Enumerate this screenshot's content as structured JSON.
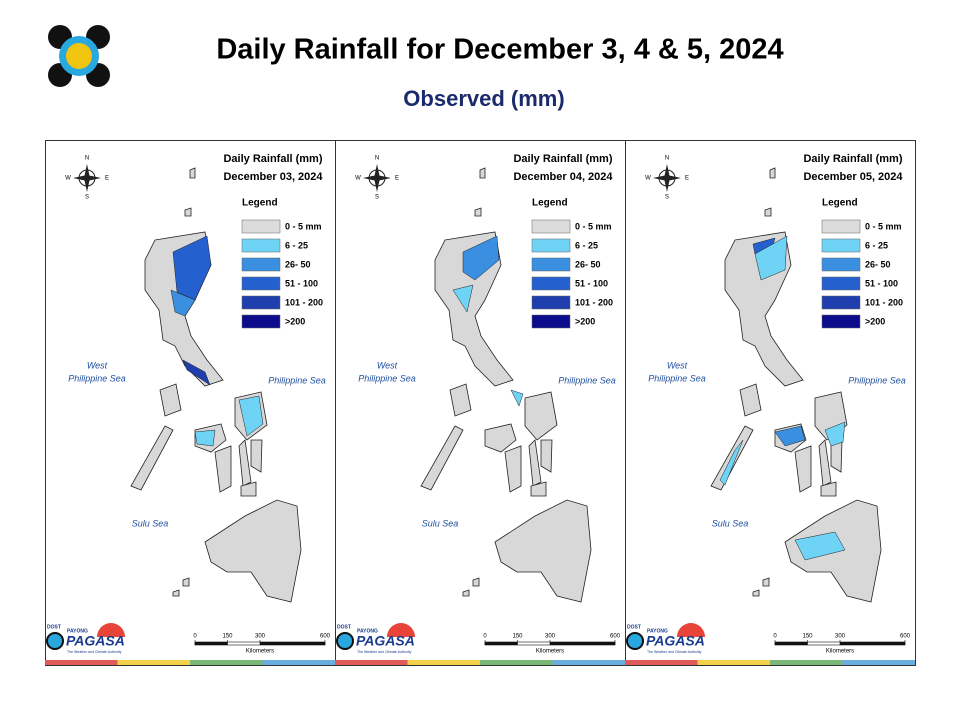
{
  "header": {
    "title": "Daily Rainfall for December 3, 4 & 5, 2024",
    "subtitle": "Observed (mm)"
  },
  "panel_heading": "Daily Rainfall (mm)",
  "panels": [
    {
      "date": "December 03, 2024"
    },
    {
      "date": "December 04, 2024"
    },
    {
      "date": "December 05, 2024"
    }
  ],
  "legend": {
    "title": "Legend",
    "items": [
      {
        "label": "0 - 5 mm",
        "color": "#dcdcdc"
      },
      {
        "label": "6 - 25",
        "color": "#6fd3f5"
      },
      {
        "label": "26- 50",
        "color": "#3a8fe0"
      },
      {
        "label": "51 - 100",
        "color": "#2560cf"
      },
      {
        "label": "101 - 200",
        "color": "#1f3fae"
      },
      {
        "label": ">200",
        "color": "#0b0b8c"
      }
    ]
  },
  "seas": {
    "west": [
      "West",
      "Philippine Sea"
    ],
    "east": "Philippine Sea",
    "south": "Sulu Sea"
  },
  "compass": [
    "N",
    "E",
    "S",
    "W"
  ],
  "scale": {
    "ticks": [
      0,
      150,
      300,
      600
    ],
    "unit": "Kilometers"
  },
  "logo": {
    "top": "DOST",
    "mid": "PAYONG",
    "name": "PAGASA",
    "tagline": "The Weather and Climate Authority"
  }
}
